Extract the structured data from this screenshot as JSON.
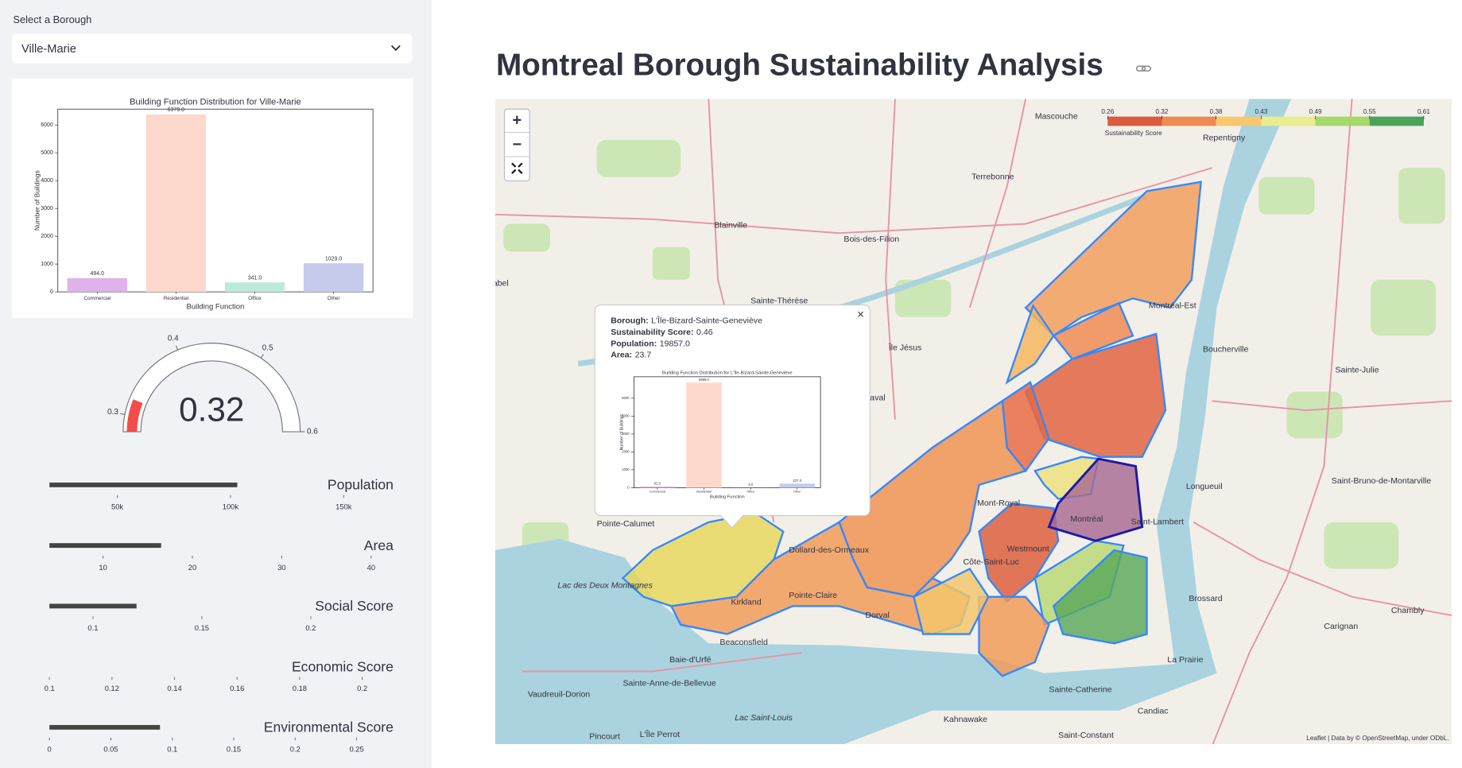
{
  "sidebar": {
    "select_label": "Select a Borough",
    "selected_borough": "Ville-Marie"
  },
  "title": "Montreal Borough Sustainability Analysis",
  "chart_data": [
    {
      "type": "bar",
      "title": "Building Function Distribution for Ville-Marie",
      "x_label": "Building Function",
      "y_label": "Number of Buildings",
      "categories": [
        "Commercial",
        "Residential",
        "Office",
        "Other"
      ],
      "values": [
        494,
        6379,
        341,
        1029
      ],
      "value_labels": [
        "494.0",
        "6379.0",
        "341.0",
        "1029.0"
      ],
      "colors": [
        "#dfb3ea",
        "#fdd8cd",
        "#bdebd9",
        "#c6cbec"
      ],
      "ylim": [
        0,
        6570
      ],
      "yticks": [
        0,
        1000,
        2000,
        3000,
        4000,
        5000,
        6000
      ]
    },
    {
      "type": "gauge",
      "value": 0.32,
      "ylim": [
        0.28,
        0.6
      ],
      "yticks": [
        0.3,
        0.4,
        0.5,
        0.6
      ],
      "color": "#f44b4b"
    },
    {
      "type": "bullet",
      "title": "Population",
      "value": 103000,
      "xlim": [
        20000,
        172000
      ],
      "xticks": [
        {
          "value": 50000,
          "label": "50k"
        },
        {
          "value": 100000,
          "label": "100k"
        },
        {
          "value": 150000,
          "label": "150k"
        }
      ]
    },
    {
      "type": "bullet",
      "title": "Area",
      "value": 16.5,
      "xlim": [
        4,
        42.5
      ],
      "xticks": [
        10,
        20,
        30,
        40
      ]
    },
    {
      "type": "bullet",
      "title": "Social Score",
      "value": 0.12,
      "xlim": [
        0.08,
        0.238
      ],
      "xticks": [
        0.1,
        0.15,
        0.2
      ]
    },
    {
      "type": "bullet",
      "title": "Economic Score",
      "value": 0.1,
      "xlim": [
        0.1,
        0.21
      ],
      "xticks": [
        0.1,
        0.12,
        0.14,
        0.16,
        0.18,
        0.2
      ]
    },
    {
      "type": "bullet",
      "title": "Environmental Score",
      "value": 0.09,
      "xlim": [
        0,
        0.28
      ],
      "xticks": [
        0,
        0.05,
        0.1,
        0.15,
        0.2,
        0.25
      ]
    },
    {
      "type": "bar",
      "title": "Building Function Distribution for L'Île-Bizard-Sainte-Geneviève",
      "x_label": "Building Function",
      "y_label": "Number of Buildings",
      "categories": [
        "Commercial",
        "Residential",
        "Office",
        "Other"
      ],
      "values": [
        62,
        5868,
        3,
        227
      ],
      "value_labels": [
        "62.0",
        "5868.0",
        "3.0",
        "227.0"
      ],
      "colors": [
        "#dfb3ea",
        "#fdd8cd",
        "#bdebd9",
        "#c6cbec"
      ],
      "ylim": [
        0,
        6200
      ],
      "yticks": [
        0,
        1000,
        2000,
        3000,
        4000,
        5000
      ]
    },
    {
      "type": "colorbar",
      "title": "Sustainability Score",
      "xlim": [
        0.26,
        0.61
      ],
      "xticks": [
        0.26,
        0.32,
        0.38,
        0.43,
        0.49,
        0.55,
        0.61
      ],
      "colors": [
        "#dc5a3e",
        "#ef8a52",
        "#f8c76e",
        "#e9ec8f",
        "#a6d96a",
        "#4aa35a"
      ]
    }
  ],
  "map": {
    "controls": {
      "zoom_in": "+",
      "zoom_out": "−"
    },
    "popup": {
      "close": "×",
      "fields": [
        {
          "label": "Borough:",
          "value": "L'Île-Bizard-Sainte-Geneviève"
        },
        {
          "label": "Sustainability Score:",
          "value": 0.46
        },
        {
          "label": "Population:",
          "value": "19857.0"
        },
        {
          "label": "Area:",
          "value": 23.7
        }
      ]
    },
    "places": [
      "Mascouche",
      "Repentigny",
      "Terrebonne",
      "Blainville",
      "Bois-des-Filion",
      "Mirabel",
      "Sainte-Thérèse",
      "Île Jésus",
      "Laval",
      "Montréal-Est",
      "Boucherville",
      "Sainte-Julie",
      "Longueuil",
      "Saint-Bruno-de-Montarville",
      "Saint-Lambert",
      "Brossard",
      "Chambly",
      "Carignan",
      "La Prairie",
      "Candiac",
      "Sainte-Catherine",
      "Saint-Constant",
      "Kahnawake",
      "Lac Saint-Louis",
      "Pincourt",
      "L'Île Perrot",
      "Vaudreuil-Dorion",
      "Sainte-Anne-de-Bellevue",
      "Baie-d'Urfé",
      "Beaconsfield",
      "Kirkland",
      "Pointe-Claire",
      "Dorval",
      "Dollard-des-Ormeaux",
      "Pointe-Calumet",
      "Lac des Deux Montagnes",
      "Westmount",
      "Montréal",
      "Côte-Saint-Luc",
      "Mont-Royal"
    ],
    "attribution": "Leaflet | Data by © OpenStreetMap, under ODbL."
  }
}
